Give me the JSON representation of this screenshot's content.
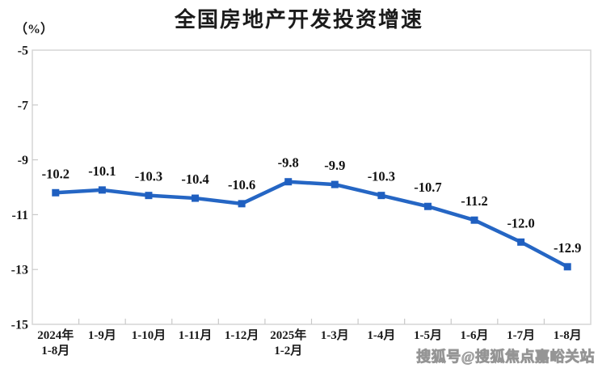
{
  "chart_data": {
    "type": "line",
    "title": "全国房地产开发投资增速",
    "unit_label": "（%）",
    "categories": [
      [
        "2024年",
        "1-8月"
      ],
      [
        "1-9月"
      ],
      [
        "1-10月"
      ],
      [
        "1-11月"
      ],
      [
        "1-12月"
      ],
      [
        "2025年",
        "1-2月"
      ],
      [
        "1-3月"
      ],
      [
        "1-4月"
      ],
      [
        "1-5月"
      ],
      [
        "1-6月"
      ],
      [
        "1-7月"
      ],
      [
        "1-8月"
      ]
    ],
    "values": [
      -10.2,
      -10.1,
      -10.3,
      -10.4,
      -10.6,
      -9.8,
      -9.9,
      -10.3,
      -10.7,
      -11.2,
      -12.0,
      -12.9
    ],
    "data_labels": [
      "-10.2",
      "-10.1",
      "-10.3",
      "-10.4",
      "-10.6",
      "-9.8",
      "-9.9",
      "-10.3",
      "-10.7",
      "-11.2",
      "-12.0",
      "-12.9"
    ],
    "ylim": [
      -15,
      -5
    ],
    "yticks": [
      -5,
      -7,
      -9,
      -11,
      -13,
      -15
    ],
    "grid": false,
    "legend": "none",
    "marker": "square",
    "line_color": "#2566c4",
    "marker_color": "#1f5fc0",
    "label_color": "#1a1a1a",
    "frame_color": "#d6d6d6",
    "tick_color": "#c9c9c9"
  },
  "watermark": {
    "text": "搜狐号@搜狐焦点嘉峪关站",
    "color": "#9b9b9b"
  }
}
